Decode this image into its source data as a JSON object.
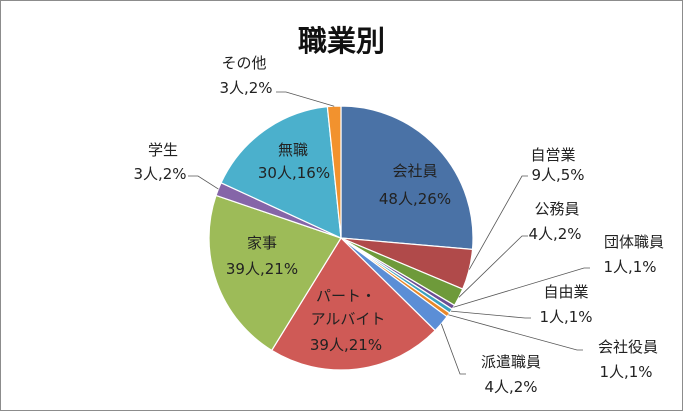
{
  "chart_data": {
    "type": "pie",
    "title": "職業別",
    "start_angle_deg": 0,
    "direction": "clockwise",
    "slices": [
      {
        "name": "会社員",
        "count_label": "48人,26%",
        "count": 48,
        "percent": 26,
        "color": "#4a72a6"
      },
      {
        "name": "自営業",
        "count_label": "9人,5%",
        "count": 9,
        "percent": 5,
        "color": "#b04a4a"
      },
      {
        "name": "公務員",
        "count_label": "4人,2%",
        "count": 4,
        "percent": 2,
        "color": "#6e9a3a"
      },
      {
        "name": "団体職員",
        "count_label": "1人,1%",
        "count": 1,
        "percent": 1,
        "color": "#6c4f93"
      },
      {
        "name": "自由業",
        "count_label": "1人,1%",
        "count": 1,
        "percent": 1,
        "color": "#3aa1bf"
      },
      {
        "name": "会社役員",
        "count_label": "1人,1%",
        "count": 1,
        "percent": 1,
        "color": "#e8882a"
      },
      {
        "name": "派遣職員",
        "count_label": "4人,2%",
        "count": 4,
        "percent": 2,
        "color": "#5b8ed6"
      },
      {
        "name": "パート・アルバイト",
        "count_label": "39人,21%",
        "count": 39,
        "percent": 21,
        "color": "#cf5a56"
      },
      {
        "name": "家事",
        "count_label": "39人,21%",
        "count": 39,
        "percent": 21,
        "color": "#9dbb58"
      },
      {
        "name": "学生",
        "count_label": "3人,2%",
        "count": 3,
        "percent": 2,
        "color": "#8565a8"
      },
      {
        "name": "無職",
        "count_label": "30人,16%",
        "count": 30,
        "percent": 16,
        "color": "#4bb0cc"
      },
      {
        "name": "その他",
        "count_label": "3人,2%",
        "count": 3,
        "percent": 2,
        "color": "#f2922e"
      }
    ]
  }
}
